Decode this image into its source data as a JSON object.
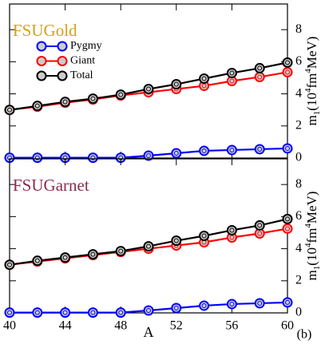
{
  "chart_data": [
    {
      "type": "line",
      "title": "FSUGold",
      "title_color": "#d4a017",
      "y_label": [
        "m",
        "1",
        "(10",
        "4",
        "fm",
        "4",
        "MeV)"
      ],
      "x": [
        40,
        42,
        44,
        46,
        48,
        50,
        52,
        54,
        56,
        58,
        60
      ],
      "xlim": [
        40,
        60
      ],
      "xticks": [
        40,
        44,
        48,
        52,
        56,
        60
      ],
      "ylim": [
        0,
        9.6
      ],
      "yticks": [
        0,
        2,
        4,
        6,
        8
      ],
      "legend": true,
      "legend_position": "upper left",
      "series": [
        {
          "name": "Pygmy",
          "color": "#0000ff",
          "values": [
            0.02,
            0.02,
            0.02,
            0.02,
            0.02,
            0.15,
            0.3,
            0.45,
            0.5,
            0.55,
            0.6
          ]
        },
        {
          "name": "Giant",
          "color": "#ff0000",
          "values": [
            3.0,
            3.2,
            3.45,
            3.65,
            3.9,
            4.1,
            4.3,
            4.5,
            4.8,
            5.05,
            5.35
          ]
        },
        {
          "name": "Total",
          "color": "#000000",
          "values": [
            3.0,
            3.25,
            3.5,
            3.7,
            3.95,
            4.3,
            4.6,
            4.95,
            5.3,
            5.6,
            5.95
          ]
        }
      ]
    },
    {
      "type": "line",
      "title": "FSUGarnet",
      "title_color": "#8b2e4b",
      "y_label": [
        "m",
        "1",
        "(10",
        "4",
        "fm",
        "4",
        "MeV)"
      ],
      "x_label": "A",
      "annotation": "(b)",
      "x": [
        40,
        42,
        44,
        46,
        48,
        50,
        52,
        54,
        56,
        58,
        60
      ],
      "xlim": [
        40,
        60
      ],
      "xticks": [
        40,
        44,
        48,
        52,
        56,
        60
      ],
      "ylim": [
        0,
        9.6
      ],
      "yticks": [
        0,
        2,
        4,
        6,
        8
      ],
      "legend": false,
      "series": [
        {
          "name": "Pygmy",
          "color": "#0000ff",
          "values": [
            0.02,
            0.02,
            0.02,
            0.02,
            0.02,
            0.15,
            0.3,
            0.45,
            0.55,
            0.6,
            0.65
          ]
        },
        {
          "name": "Giant",
          "color": "#ff0000",
          "values": [
            3.0,
            3.2,
            3.4,
            3.6,
            3.8,
            4.0,
            4.2,
            4.4,
            4.7,
            4.95,
            5.25
          ]
        },
        {
          "name": "Total",
          "color": "#000000",
          "values": [
            3.0,
            3.25,
            3.45,
            3.65,
            3.85,
            4.15,
            4.5,
            4.8,
            5.15,
            5.45,
            5.85
          ]
        }
      ]
    }
  ]
}
